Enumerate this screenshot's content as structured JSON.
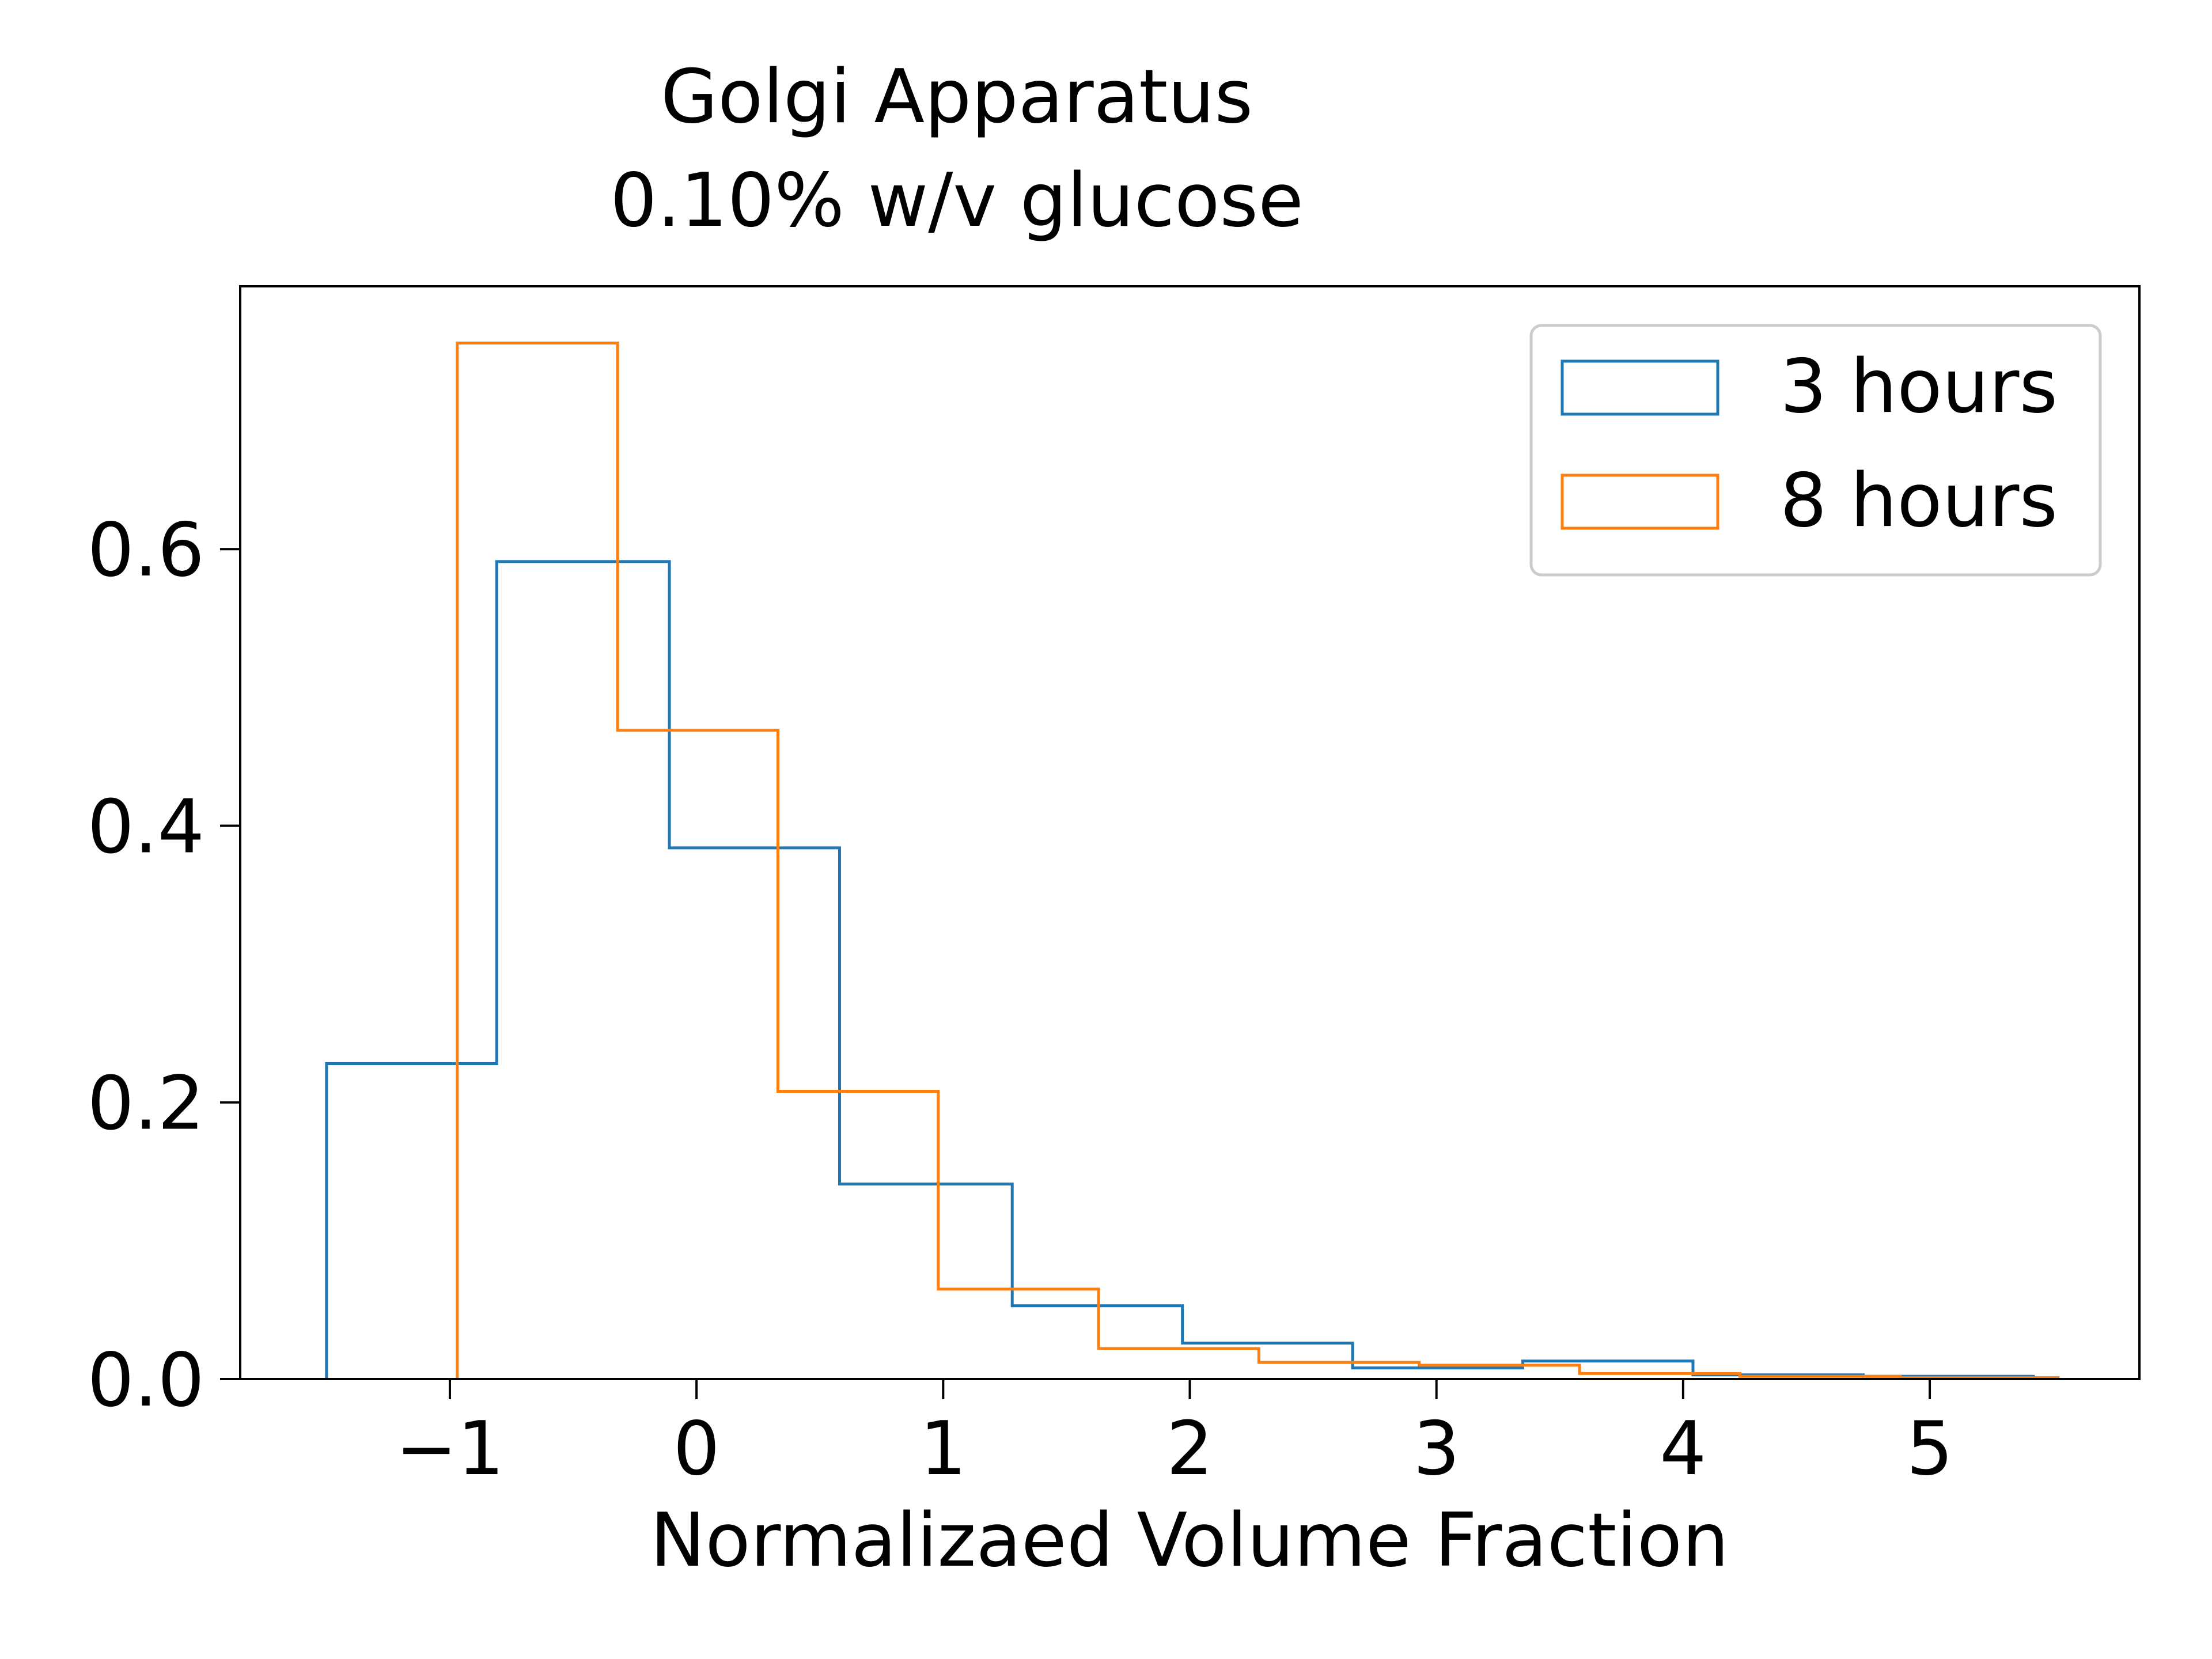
{
  "chart_data": {
    "type": "histogram",
    "title_line1": "Golgi Apparatus",
    "title_line2": "0.10% w/v glucose",
    "xlabel": "Normalizaed Volume Fraction",
    "ylabel": "",
    "xlim": [
      -1.85,
      5.85
    ],
    "ylim": [
      0,
      0.79
    ],
    "x_ticks": [
      -1,
      0,
      1,
      2,
      3,
      4,
      5
    ],
    "x_tick_labels": [
      "−1",
      "0",
      "1",
      "2",
      "3",
      "4",
      "5"
    ],
    "y_ticks": [
      0.0,
      0.2,
      0.4,
      0.6
    ],
    "y_tick_labels": [
      "0.0",
      "0.2",
      "0.4",
      "0.6"
    ],
    "grid": false,
    "legend_position": "top-right",
    "series": [
      {
        "name": "3 hours",
        "color": "#1f77b4",
        "bin_edges": [
          -1.5,
          -0.81,
          -0.11,
          0.58,
          1.28,
          1.97,
          2.66,
          3.35,
          4.04,
          4.73,
          5.42
        ],
        "values": [
          0.228,
          0.591,
          0.384,
          0.141,
          0.053,
          0.026,
          0.008,
          0.013,
          0.003,
          0.002
        ]
      },
      {
        "name": "8 hours",
        "color": "#ff7f0e",
        "bin_edges": [
          -0.97,
          -0.32,
          0.33,
          0.98,
          1.63,
          2.28,
          2.93,
          3.58,
          4.23,
          4.88,
          5.52
        ],
        "values": [
          0.749,
          0.469,
          0.208,
          0.065,
          0.022,
          0.012,
          0.01,
          0.004,
          0.002,
          0.001
        ]
      }
    ]
  }
}
